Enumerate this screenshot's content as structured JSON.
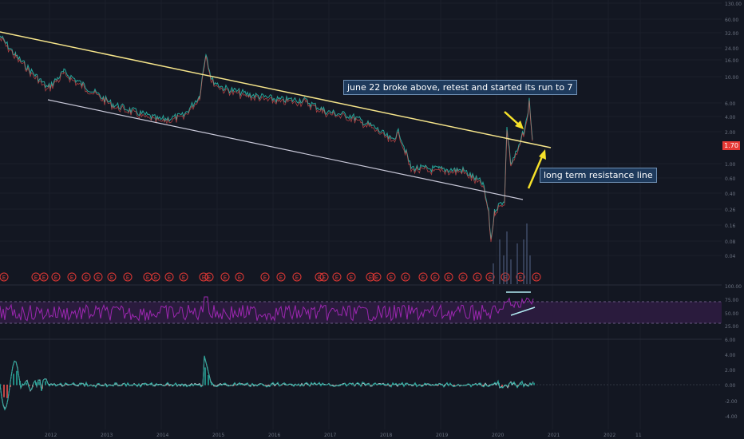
{
  "colors": {
    "background": "#131722",
    "grid": "#1e2230",
    "resistance_line": "#f5e48a",
    "support_line": "#c8c8d8",
    "arrow": "#f5e02a",
    "rsi_line": "#9c27b0",
    "rsi_band": "#2a1b3d",
    "macd_line": "#b0bec5",
    "macd_signal": "#26a69a",
    "candle_up": "#26a69a",
    "candle_down": "#ef5350",
    "earnings_marker": "#e53935",
    "price_tag": "#e53935"
  },
  "annotations": {
    "june22": "june 22 broke above, retest and started its run to 7",
    "resistance": "long term resistance line"
  },
  "current_price": "1.70",
  "earnings_marker_label": "E",
  "chart_data": {
    "type": "line",
    "panes": [
      {
        "name": "price",
        "y_scale": "log",
        "y_ticks": [
          "130.00",
          "60.00",
          "32.00",
          "24.00",
          "16.00",
          "10.00",
          "6.00",
          "4.00",
          "2.00",
          "1.00",
          "0.60",
          "0.40",
          "0.26",
          "0.16",
          "0.08",
          "0.04"
        ],
        "trendlines": [
          {
            "name": "long term resistance line",
            "from": [
              "2011",
              52
            ],
            "to": [
              "2020-09",
              1.7
            ]
          },
          {
            "name": "support",
            "from": [
              "2011-10",
              8
            ],
            "to": [
              "2020-09",
              0.33
            ]
          }
        ]
      },
      {
        "name": "rsi",
        "y_ticks": [
          "100.00",
          "75.00",
          "50.00",
          "25.00"
        ],
        "bands": [
          75,
          25
        ]
      },
      {
        "name": "macd",
        "y_ticks": [
          "6.00",
          "4.00",
          "2.00",
          "0.00",
          "-2.00",
          "-4.00"
        ]
      }
    ],
    "x_ticks": [
      "2012",
      "2013",
      "2014",
      "2015",
      "2016",
      "2017",
      "2018",
      "2019",
      "2020",
      "2021",
      "2022",
      "11"
    ]
  }
}
